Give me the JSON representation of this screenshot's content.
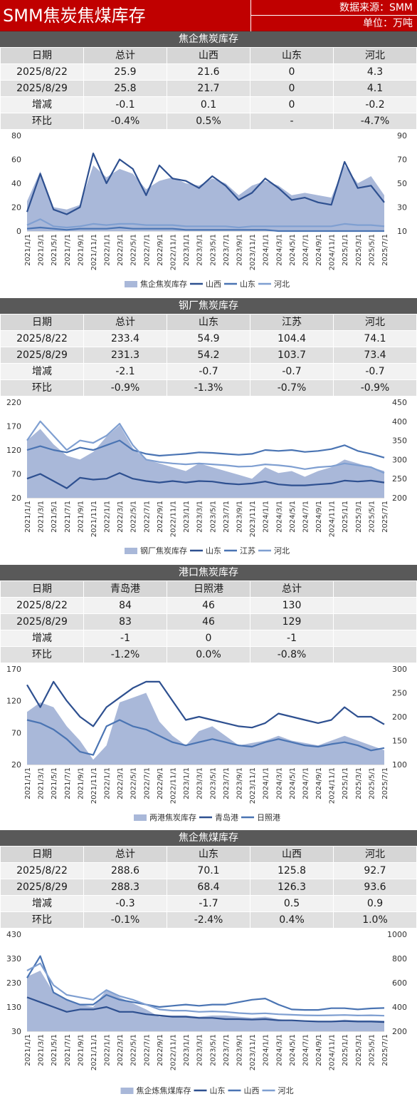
{
  "header": {
    "title": "SMM焦炭焦煤库存",
    "source": "数据来源：SMM",
    "unit": "单位：万吨"
  },
  "colors": {
    "red": "#c00000",
    "area": "#a9b8d9",
    "dark": "#2e5090",
    "mid": "#4a74b3",
    "light": "#7f9fd1"
  },
  "sections": [
    {
      "title": "焦企焦炭库存",
      "headers": [
        "日期",
        "总计",
        "山西",
        "山东",
        "河北"
      ],
      "rows": [
        [
          "2025/8/22",
          "25.9",
          "21.6",
          "0",
          "4.3"
        ],
        [
          "2025/8/29",
          "25.8",
          "21.7",
          "0",
          "4.1"
        ],
        [
          "增减",
          "-0.1",
          "0.1",
          "0",
          "-0.2"
        ],
        [
          "环比",
          "-0.4%",
          "0.5%",
          "-",
          "-4.7%"
        ]
      ]
    },
    {
      "title": "钢厂焦炭库存",
      "headers": [
        "日期",
        "总计",
        "山东",
        "江苏",
        "河北"
      ],
      "rows": [
        [
          "2025/8/22",
          "233.4",
          "54.9",
          "104.4",
          "74.1"
        ],
        [
          "2025/8/29",
          "231.3",
          "54.2",
          "103.7",
          "73.4"
        ],
        [
          "增减",
          "-2.1",
          "-0.7",
          "-0.7",
          "-0.7"
        ],
        [
          "环比",
          "-0.9%",
          "-1.3%",
          "-0.7%",
          "-0.9%"
        ]
      ]
    },
    {
      "title": "港口焦炭库存",
      "headers": [
        "日期",
        "青岛港",
        "日照港",
        "总计",
        ""
      ],
      "rows": [
        [
          "2025/8/22",
          "84",
          "46",
          "130",
          ""
        ],
        [
          "2025/8/29",
          "83",
          "46",
          "129",
          ""
        ],
        [
          "增减",
          "-1",
          "0",
          "-1",
          ""
        ],
        [
          "环比",
          "-1.2%",
          "0.0%",
          "-0.8%",
          ""
        ]
      ]
    },
    {
      "title": "焦企焦煤库存",
      "headers": [
        "日期",
        "总计",
        "山东",
        "山西",
        "河北"
      ],
      "rows": [
        [
          "2025/8/22",
          "288.6",
          "70.1",
          "125.8",
          "92.7"
        ],
        [
          "2025/8/29",
          "288.3",
          "68.4",
          "126.3",
          "93.6"
        ],
        [
          "增减",
          "-0.3",
          "-1.7",
          "0.5",
          "0.9"
        ],
        [
          "环比",
          "-0.1%",
          "-2.4%",
          "0.4%",
          "1.0%"
        ]
      ]
    }
  ],
  "chart_data": [
    {
      "type": "area",
      "x": [
        "2021/1/1",
        "2021/3/1",
        "2021/5/1",
        "2021/7/1",
        "2021/9/1",
        "2021/11/1",
        "2022/1/1",
        "2022/3/1",
        "2022/5/1",
        "2022/7/1",
        "2022/9/1",
        "2022/11/1",
        "2023/1/1",
        "2023/3/1",
        "2023/5/1",
        "2023/7/1",
        "2023/9/1",
        "2023/11/1",
        "2024/1/1",
        "2024/3/1",
        "2024/5/1",
        "2024/7/1",
        "2024/9/1",
        "2024/11/1",
        "2025/1/1",
        "2025/3/1",
        "2025/5/1",
        "2025/7/1"
      ],
      "y_left": {
        "ticks": [
          0,
          20,
          40,
          60,
          80
        ],
        "range": [
          0,
          80
        ]
      },
      "y_right": {
        "ticks": [
          10,
          30,
          50,
          70,
          90
        ],
        "range": [
          10,
          90
        ]
      },
      "series": [
        {
          "name": "焦企焦炭库存",
          "kind": "area",
          "axis": "left",
          "values": [
            25,
            50,
            20,
            18,
            22,
            55,
            45,
            52,
            48,
            35,
            42,
            45,
            40,
            38,
            44,
            40,
            30,
            38,
            42,
            38,
            30,
            32,
            30,
            28,
            55,
            40,
            46,
            30
          ]
        },
        {
          "name": "山西",
          "kind": "line",
          "axis": "left",
          "values": [
            16,
            48,
            18,
            14,
            20,
            65,
            40,
            60,
            52,
            30,
            55,
            44,
            42,
            36,
            46,
            38,
            26,
            32,
            44,
            36,
            26,
            28,
            24,
            22,
            58,
            36,
            38,
            24
          ]
        },
        {
          "name": "山东",
          "kind": "line",
          "axis": "left",
          "values": [
            2,
            3,
            2,
            1,
            2,
            2,
            2,
            3,
            2,
            2,
            2,
            2,
            1,
            1,
            1,
            1,
            1,
            1,
            1,
            0,
            0,
            0,
            0,
            0,
            0,
            0,
            0,
            0
          ]
        },
        {
          "name": "河北",
          "kind": "line",
          "axis": "left",
          "values": [
            5,
            10,
            4,
            3,
            4,
            6,
            5,
            6,
            6,
            5,
            5,
            5,
            4,
            4,
            4,
            4,
            3,
            4,
            4,
            4,
            4,
            4,
            4,
            4,
            6,
            5,
            5,
            4
          ]
        }
      ]
    },
    {
      "type": "area",
      "x": [
        "2021/1/1",
        "2021/3/1",
        "2021/5/1",
        "2021/7/1",
        "2021/9/1",
        "2021/11/1",
        "2022/1/1",
        "2022/3/1",
        "2022/5/1",
        "2022/7/1",
        "2022/9/1",
        "2022/11/1",
        "2023/1/1",
        "2023/3/1",
        "2023/5/1",
        "2023/7/1",
        "2023/9/1",
        "2023/11/1",
        "2024/1/1",
        "2024/3/1",
        "2024/5/1",
        "2024/7/1",
        "2024/9/1",
        "2024/11/1",
        "2025/1/1",
        "2025/3/1",
        "2025/5/1",
        "2025/7/1"
      ],
      "y_left": {
        "ticks": [
          20,
          70,
          120,
          170,
          220
        ],
        "range": [
          20,
          220
        ]
      },
      "y_right": {
        "ticks": [
          200,
          250,
          300,
          350,
          400,
          450
        ],
        "range": [
          200,
          450
        ]
      },
      "series": [
        {
          "name": "钢厂焦炭库存",
          "kind": "area",
          "axis": "right",
          "values": [
            350,
            380,
            340,
            310,
            300,
            320,
            360,
            390,
            330,
            300,
            290,
            280,
            270,
            290,
            280,
            270,
            260,
            250,
            280,
            265,
            270,
            255,
            270,
            280,
            300,
            290,
            280,
            270
          ]
        },
        {
          "name": "山东",
          "kind": "line",
          "axis": "left",
          "values": [
            60,
            70,
            55,
            40,
            62,
            58,
            60,
            72,
            60,
            55,
            52,
            55,
            52,
            55,
            54,
            50,
            48,
            50,
            54,
            48,
            46,
            46,
            48,
            50,
            56,
            54,
            56,
            52
          ]
        },
        {
          "name": "江苏",
          "kind": "line",
          "axis": "left",
          "values": [
            120,
            128,
            120,
            115,
            125,
            120,
            130,
            140,
            120,
            112,
            108,
            110,
            112,
            115,
            114,
            112,
            110,
            112,
            120,
            118,
            120,
            116,
            118,
            122,
            130,
            118,
            112,
            104
          ]
        },
        {
          "name": "河北",
          "kind": "line",
          "axis": "left",
          "values": [
            140,
            180,
            150,
            120,
            140,
            135,
            150,
            175,
            130,
            100,
            95,
            92,
            90,
            92,
            90,
            88,
            85,
            86,
            90,
            88,
            85,
            80,
            84,
            86,
            92,
            88,
            84,
            72
          ]
        }
      ]
    },
    {
      "type": "area",
      "x": [
        "2021/1/1",
        "2021/3/1",
        "2021/5/1",
        "2021/7/1",
        "2021/9/1",
        "2021/11/1",
        "2022/1/1",
        "2022/3/1",
        "2022/5/1",
        "2022/7/1",
        "2022/9/1",
        "2022/11/1",
        "2023/1/1",
        "2023/3/1",
        "2023/5/1",
        "2023/7/1",
        "2023/9/1",
        "2023/11/1",
        "2024/1/1",
        "2024/3/1",
        "2024/5/1",
        "2024/7/1",
        "2024/9/1",
        "2024/11/1",
        "2025/1/1",
        "2025/3/1",
        "2025/5/1",
        "2025/7/1"
      ],
      "y_left": {
        "ticks": [
          20,
          70,
          120,
          170
        ],
        "range": [
          20,
          170
        ]
      },
      "y_right": {
        "ticks": [
          100,
          150,
          200,
          250,
          300
        ],
        "range": [
          100,
          300
        ]
      },
      "series": [
        {
          "name": "两港焦炭库存",
          "kind": "area",
          "axis": "right",
          "values": [
            210,
            230,
            220,
            180,
            150,
            110,
            140,
            230,
            240,
            250,
            190,
            160,
            140,
            170,
            180,
            160,
            140,
            145,
            150,
            160,
            150,
            145,
            140,
            150,
            160,
            150,
            140,
            130
          ]
        },
        {
          "name": "青岛港",
          "kind": "line",
          "axis": "left",
          "values": [
            145,
            110,
            150,
            120,
            95,
            80,
            110,
            125,
            140,
            150,
            150,
            120,
            90,
            95,
            90,
            85,
            80,
            78,
            85,
            100,
            95,
            90,
            85,
            90,
            110,
            95,
            95,
            83
          ]
        },
        {
          "name": "日照港",
          "kind": "line",
          "axis": "left",
          "values": [
            90,
            85,
            75,
            60,
            40,
            35,
            80,
            90,
            80,
            75,
            65,
            55,
            50,
            55,
            60,
            55,
            50,
            48,
            55,
            60,
            55,
            50,
            48,
            52,
            55,
            50,
            42,
            46
          ]
        }
      ]
    },
    {
      "type": "area",
      "x": [
        "2021/1/1",
        "2021/3/1",
        "2021/5/1",
        "2021/7/1",
        "2021/9/1",
        "2021/11/1",
        "2022/1/1",
        "2022/3/1",
        "2022/5/1",
        "2022/7/1",
        "2022/9/1",
        "2022/11/1",
        "2023/1/1",
        "2023/3/1",
        "2023/5/1",
        "2023/7/1",
        "2023/9/1",
        "2023/11/1",
        "2024/1/1",
        "2024/3/1",
        "2024/5/1",
        "2024/7/1",
        "2024/9/1",
        "2024/11/1",
        "2025/1/1",
        "2025/3/1",
        "2025/5/1",
        "2025/7/1"
      ],
      "y_left": {
        "ticks": [
          30,
          130,
          230,
          330,
          430
        ],
        "range": [
          30,
          430
        ]
      },
      "y_right": {
        "ticks": [
          200,
          400,
          600,
          800,
          1000
        ],
        "range": [
          200,
          1000
        ]
      },
      "series": [
        {
          "name": "焦企炼焦煤库存",
          "kind": "area",
          "axis": "right",
          "values": [
            650,
            700,
            520,
            460,
            420,
            400,
            540,
            480,
            430,
            380,
            320,
            330,
            330,
            320,
            330,
            330,
            320,
            310,
            320,
            300,
            290,
            285,
            280,
            285,
            295,
            290,
            290,
            288
          ]
        },
        {
          "name": "山东",
          "kind": "line",
          "axis": "left",
          "values": [
            170,
            150,
            130,
            110,
            120,
            120,
            130,
            110,
            110,
            100,
            95,
            90,
            90,
            85,
            85,
            80,
            80,
            78,
            80,
            75,
            75,
            72,
            70,
            70,
            72,
            70,
            70,
            68
          ]
        },
        {
          "name": "山西",
          "kind": "line",
          "axis": "left",
          "values": [
            250,
            340,
            190,
            160,
            140,
            140,
            180,
            160,
            150,
            140,
            130,
            135,
            140,
            135,
            140,
            140,
            150,
            160,
            165,
            140,
            120,
            118,
            118,
            125,
            125,
            120,
            124,
            126
          ]
        },
        {
          "name": "河北",
          "kind": "line",
          "axis": "left",
          "values": [
            280,
            310,
            220,
            180,
            170,
            160,
            200,
            175,
            160,
            140,
            120,
            115,
            115,
            110,
            112,
            110,
            105,
            102,
            104,
            100,
            98,
            96,
            95,
            96,
            97,
            95,
            96,
            94
          ]
        }
      ]
    }
  ]
}
